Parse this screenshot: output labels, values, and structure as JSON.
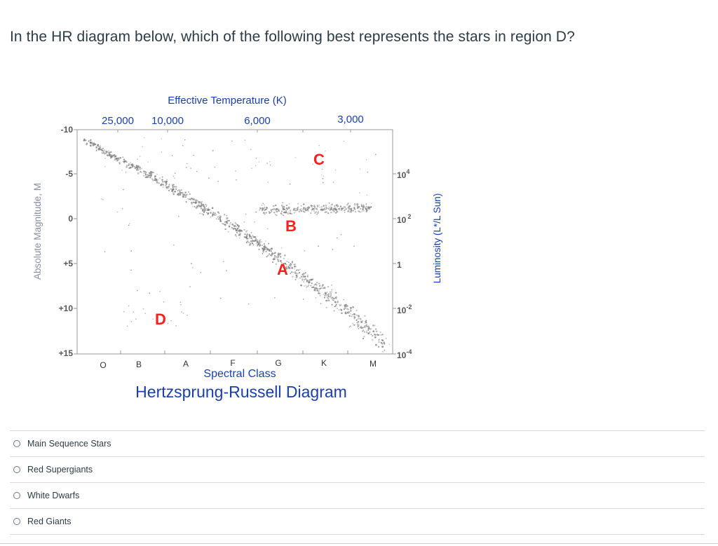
{
  "question": "In the HR diagram below, which of the following best represents the stars in region D?",
  "diagram": {
    "top_axis_title": "Effective Temperature (K)",
    "temperature_ticks": [
      "25,000",
      "10,000",
      "6,000",
      "3,000"
    ],
    "left_axis_title": "Absolute Magnitude, M",
    "magnitude_ticks": [
      "-10",
      "-5",
      "0",
      "+5",
      "+10",
      "+15"
    ],
    "right_axis_title": "Luminosity (L*/L Sun)",
    "luminosity_ticks": [
      {
        "base": "10",
        "exp": "4"
      },
      {
        "base": "10",
        "exp": "2"
      },
      {
        "base": "1",
        "exp": ""
      },
      {
        "base": "10",
        "exp": "-2"
      },
      {
        "base": "10",
        "exp": "-4"
      }
    ],
    "spectral_classes": [
      "O",
      "B",
      "A",
      "F",
      "G",
      "K",
      "M"
    ],
    "bottom_axis_title": "Spectral Class",
    "caption": "Hertzsprung-Russell Diagram",
    "region_labels": [
      "A",
      "B",
      "C",
      "D"
    ],
    "colors": {
      "label_red": "#ff1e1e",
      "axis_blue": "#1a3faa",
      "star_gray": "#7a7a7a",
      "axis_gray": "#888888"
    }
  },
  "answers": [
    {
      "label": "Main Sequence Stars"
    },
    {
      "label": "Red Supergiants"
    },
    {
      "label": "White Dwarfs"
    },
    {
      "label": "Red Giants"
    }
  ]
}
